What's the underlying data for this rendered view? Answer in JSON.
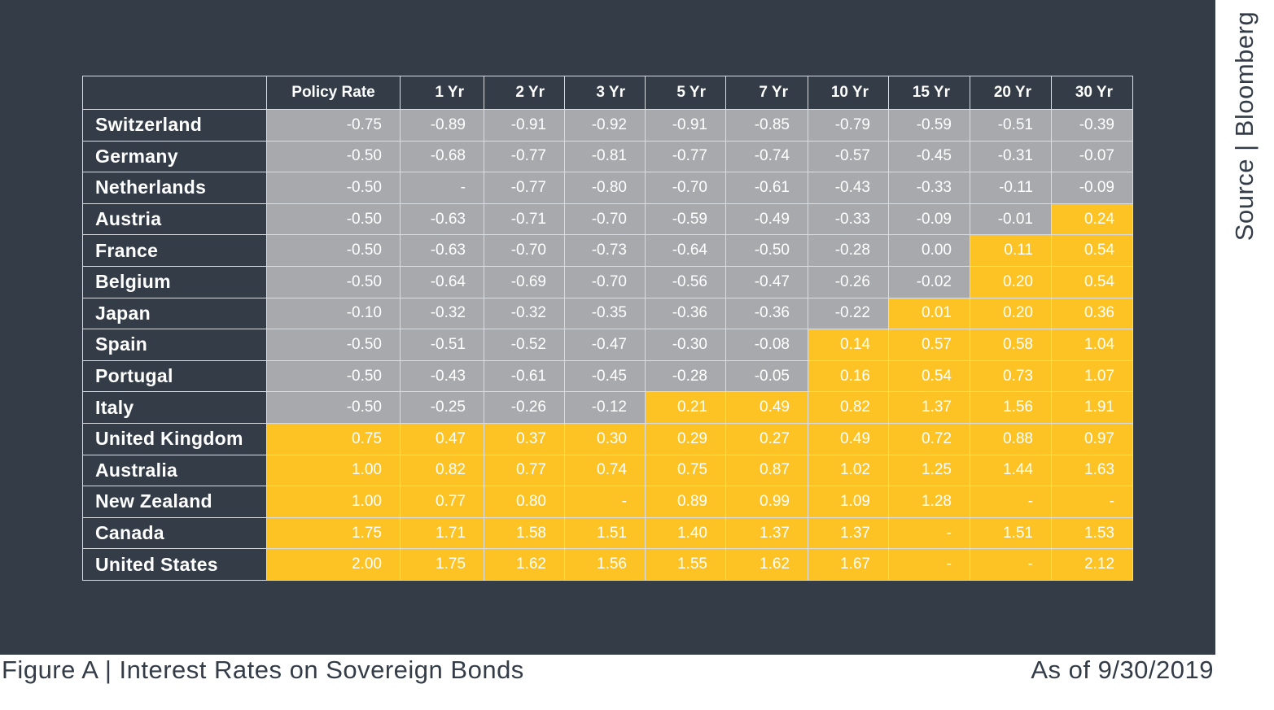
{
  "source": "Source | Bloomberg",
  "caption": "Figure A | Interest Rates on Sovereign Bonds",
  "as_of": "As of 9/30/2019",
  "colors": {
    "background": "#333c47",
    "negative": "#a7a9ac",
    "positive": "#fdc325"
  },
  "chart_data": {
    "type": "table",
    "title": "Figure A | Interest Rates on Sovereign Bonds",
    "columns": [
      "Policy Rate",
      "1 Yr",
      "2 Yr",
      "3 Yr",
      "5 Yr",
      "7 Yr",
      "10 Yr",
      "15 Yr",
      "20 Yr",
      "30 Yr"
    ],
    "rows": [
      {
        "country": "Switzerland",
        "values": [
          "-0.75",
          "-0.89",
          "-0.91",
          "-0.92",
          "-0.91",
          "-0.85",
          "-0.79",
          "-0.59",
          "-0.51",
          "-0.39"
        ]
      },
      {
        "country": "Germany",
        "values": [
          "-0.50",
          "-0.68",
          "-0.77",
          "-0.81",
          "-0.77",
          "-0.74",
          "-0.57",
          "-0.45",
          "-0.31",
          "-0.07"
        ]
      },
      {
        "country": "Netherlands",
        "values": [
          "-0.50",
          "-",
          "-0.77",
          "-0.80",
          "-0.70",
          "-0.61",
          "-0.43",
          "-0.33",
          "-0.11",
          "-0.09"
        ]
      },
      {
        "country": "Austria",
        "values": [
          "-0.50",
          "-0.63",
          "-0.71",
          "-0.70",
          "-0.59",
          "-0.49",
          "-0.33",
          "-0.09",
          "-0.01",
          "0.24"
        ]
      },
      {
        "country": "France",
        "values": [
          "-0.50",
          "-0.63",
          "-0.70",
          "-0.73",
          "-0.64",
          "-0.50",
          "-0.28",
          "0.00",
          "0.11",
          "0.54"
        ]
      },
      {
        "country": "Belgium",
        "values": [
          "-0.50",
          "-0.64",
          "-0.69",
          "-0.70",
          "-0.56",
          "-0.47",
          "-0.26",
          "-0.02",
          "0.20",
          "0.54"
        ]
      },
      {
        "country": "Japan",
        "values": [
          "-0.10",
          "-0.32",
          "-0.32",
          "-0.35",
          "-0.36",
          "-0.36",
          "-0.22",
          "0.01",
          "0.20",
          "0.36"
        ]
      },
      {
        "country": "Spain",
        "values": [
          "-0.50",
          "-0.51",
          "-0.52",
          "-0.47",
          "-0.30",
          "-0.08",
          "0.14",
          "0.57",
          "0.58",
          "1.04"
        ]
      },
      {
        "country": "Portugal",
        "values": [
          "-0.50",
          "-0.43",
          "-0.61",
          "-0.45",
          "-0.28",
          "-0.05",
          "0.16",
          "0.54",
          "0.73",
          "1.07"
        ]
      },
      {
        "country": "Italy",
        "values": [
          "-0.50",
          "-0.25",
          "-0.26",
          "-0.12",
          "0.21",
          "0.49",
          "0.82",
          "1.37",
          "1.56",
          "1.91"
        ]
      },
      {
        "country": "United Kingdom",
        "values": [
          "0.75",
          "0.47",
          "0.37",
          "0.30",
          "0.29",
          "0.27",
          "0.49",
          "0.72",
          "0.88",
          "0.97"
        ]
      },
      {
        "country": "Australia",
        "values": [
          "1.00",
          "0.82",
          "0.77",
          "0.74",
          "0.75",
          "0.87",
          "1.02",
          "1.25",
          "1.44",
          "1.63"
        ]
      },
      {
        "country": "New Zealand",
        "values": [
          "1.00",
          "0.77",
          "0.80",
          "-",
          "0.89",
          "0.99",
          "1.09",
          "1.28",
          "-",
          "-"
        ]
      },
      {
        "country": "Canada",
        "values": [
          "1.75",
          "1.71",
          "1.58",
          "1.51",
          "1.40",
          "1.37",
          "1.37",
          "-",
          "1.51",
          "1.53"
        ]
      },
      {
        "country": "United States",
        "values": [
          "2.00",
          "1.75",
          "1.62",
          "1.56",
          "1.55",
          "1.62",
          "1.67",
          "-",
          "-",
          "2.12"
        ]
      }
    ],
    "highlight": [
      [
        0,
        0,
        0,
        0,
        0,
        0,
        0,
        0,
        0,
        0
      ],
      [
        0,
        0,
        0,
        0,
        0,
        0,
        0,
        0,
        0,
        0
      ],
      [
        0,
        0,
        0,
        0,
        0,
        0,
        0,
        0,
        0,
        0
      ],
      [
        0,
        0,
        0,
        0,
        0,
        0,
        0,
        0,
        0,
        1
      ],
      [
        0,
        0,
        0,
        0,
        0,
        0,
        0,
        0,
        1,
        1
      ],
      [
        0,
        0,
        0,
        0,
        0,
        0,
        0,
        0,
        1,
        1
      ],
      [
        0,
        0,
        0,
        0,
        0,
        0,
        0,
        1,
        1,
        1
      ],
      [
        0,
        0,
        0,
        0,
        0,
        0,
        1,
        1,
        1,
        1
      ],
      [
        0,
        0,
        0,
        0,
        0,
        0,
        1,
        1,
        1,
        1
      ],
      [
        0,
        0,
        0,
        0,
        1,
        1,
        1,
        1,
        1,
        1
      ],
      [
        1,
        1,
        1,
        1,
        1,
        1,
        1,
        1,
        1,
        1
      ],
      [
        1,
        1,
        1,
        1,
        1,
        1,
        1,
        1,
        1,
        1
      ],
      [
        1,
        1,
        1,
        1,
        1,
        1,
        1,
        1,
        1,
        1
      ],
      [
        1,
        1,
        1,
        1,
        1,
        1,
        1,
        1,
        1,
        1
      ],
      [
        1,
        1,
        1,
        1,
        1,
        1,
        1,
        1,
        1,
        1
      ]
    ]
  }
}
